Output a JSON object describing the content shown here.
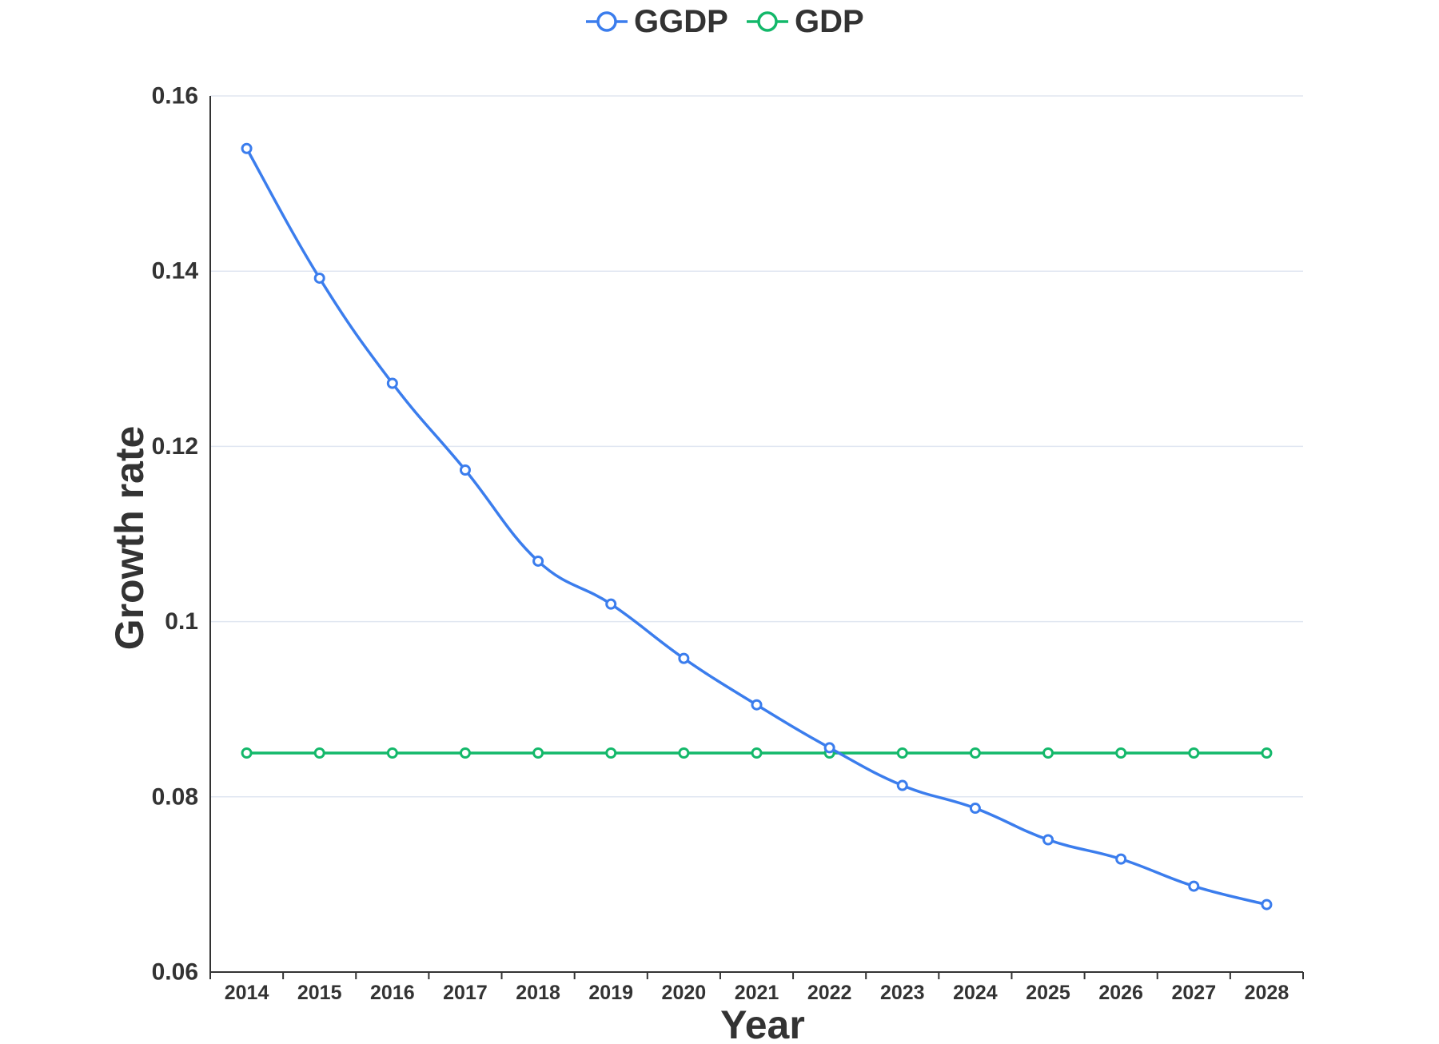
{
  "chart_data": {
    "type": "line",
    "title": "",
    "xlabel": "Year",
    "ylabel": "Growth rate",
    "categories": [
      "2014",
      "2015",
      "2016",
      "2017",
      "2018",
      "2019",
      "2020",
      "2021",
      "2022",
      "2023",
      "2024",
      "2025",
      "2026",
      "2027",
      "2028"
    ],
    "y_ticks": [
      "0.06",
      "0.08",
      "0.1",
      "0.12",
      "0.14",
      "0.16"
    ],
    "ylim": [
      0.06,
      0.16
    ],
    "grid": true,
    "legend_position": "top-center",
    "series": [
      {
        "name": "GGDP",
        "color": "#3b7ded",
        "values": [
          0.154,
          0.1392,
          0.1272,
          0.1173,
          0.1069,
          0.102,
          0.0958,
          0.0905,
          0.0856,
          0.0813,
          0.0787,
          0.0751,
          0.0729,
          0.0698,
          0.0677
        ]
      },
      {
        "name": "GDP",
        "color": "#13b86a",
        "values": [
          0.085,
          0.085,
          0.085,
          0.085,
          0.085,
          0.085,
          0.085,
          0.085,
          0.085,
          0.085,
          0.085,
          0.085,
          0.085,
          0.085,
          0.085
        ]
      }
    ]
  }
}
